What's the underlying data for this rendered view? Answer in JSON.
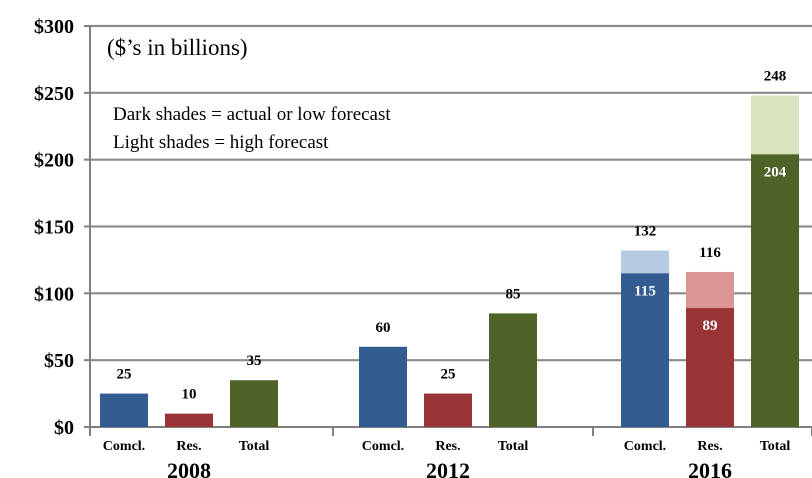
{
  "chart_data": {
    "type": "bar",
    "annotations": {
      "units": "($’s in billions)",
      "legend_dark": "Dark shades = actual or low forecast",
      "legend_light": "Light shades = high forecast"
    },
    "y_ticks": [
      "$0",
      "$50",
      "$100",
      "$150",
      "$200",
      "$250",
      "$300"
    ],
    "y_tick_values": [
      0,
      50,
      100,
      150,
      200,
      250,
      300
    ],
    "ylim": [
      0,
      300
    ],
    "grid": true,
    "groups": [
      {
        "year": "2008",
        "bars": [
          {
            "category": "Comcl.",
            "low": 25,
            "high": null,
            "label": "25",
            "label_inside": null,
            "color_dark": "#335c91",
            "color_light": "#b6cbe3"
          },
          {
            "category": "Res.",
            "low": 10,
            "high": null,
            "label": "10",
            "label_inside": null,
            "color_dark": "#983336",
            "color_light": "#d99695"
          },
          {
            "category": "Total",
            "low": 35,
            "high": null,
            "label": "35",
            "label_inside": null,
            "color_dark": "#4f6228",
            "color_light": "#d7e4bd"
          }
        ]
      },
      {
        "year": "2012",
        "bars": [
          {
            "category": "Comcl.",
            "low": 60,
            "high": null,
            "label": "60",
            "label_inside": null,
            "color_dark": "#335c91",
            "color_light": "#b6cbe3"
          },
          {
            "category": "Res.",
            "low": 25,
            "high": null,
            "label": "25",
            "label_inside": null,
            "color_dark": "#983336",
            "color_light": "#d99695"
          },
          {
            "category": "Total",
            "low": 85,
            "high": null,
            "label": "85",
            "label_inside": null,
            "color_dark": "#4f6228",
            "color_light": "#d7e4bd"
          }
        ]
      },
      {
        "year": "2016",
        "bars": [
          {
            "category": "Comcl.",
            "low": 115,
            "high": 132,
            "label": "132",
            "label_inside": "115",
            "color_dark": "#335c91",
            "color_light": "#b6cbe3"
          },
          {
            "category": "Res.",
            "low": 89,
            "high": 116,
            "label": "116",
            "label_inside": "89",
            "color_dark": "#983336",
            "color_light": "#d99695"
          },
          {
            "category": "Total",
            "low": 204,
            "high": 248,
            "label": "248",
            "label_inside": "204",
            "color_dark": "#4f6228",
            "color_light": "#d7e4bd"
          }
        ]
      }
    ]
  }
}
